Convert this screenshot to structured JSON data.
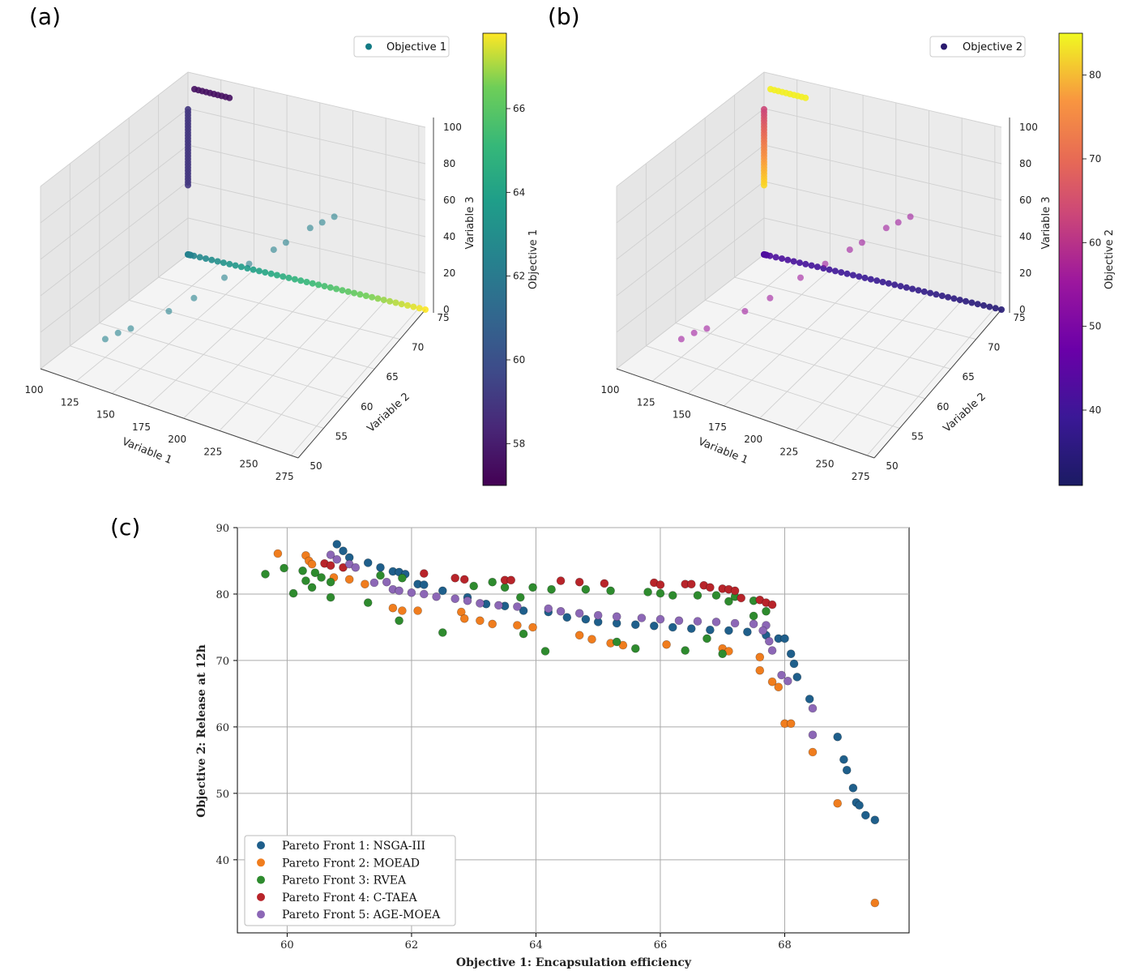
{
  "panels": {
    "a": {
      "letter": "(a)",
      "legend": "Objective 1",
      "legend_color": "#127a84",
      "colorbar_label": "Objective 1",
      "colorbar_ticks": [
        "58",
        "60",
        "62",
        "64",
        "66"
      ],
      "colorbar_range": [
        57,
        67.8
      ],
      "colormap": "viridis"
    },
    "b": {
      "letter": "(b)",
      "legend": "Objective 2",
      "legend_color": "#2a1a6e",
      "colorbar_label": "Objective 2",
      "colorbar_ticks": [
        "40",
        "50",
        "60",
        "70",
        "80"
      ],
      "colorbar_range": [
        31,
        85
      ],
      "colormap": "plasma"
    },
    "axes3d": {
      "xlabel": "Variable 1",
      "ylabel": "Variable 2",
      "zlabel": "Variable 3",
      "x_ticks": [
        "100",
        "125",
        "150",
        "175",
        "200",
        "225",
        "250",
        "275"
      ],
      "y_ticks": [
        "50",
        "55",
        "60",
        "65",
        "70",
        "75"
      ],
      "z_ticks": [
        "0",
        "20",
        "40",
        "60",
        "80",
        "100"
      ]
    },
    "c": {
      "letter": "(c)"
    }
  },
  "chart_data": [
    {
      "type": "scatter",
      "name": "panel-a-3d",
      "xlabel": "Variable 1",
      "ylabel": "Variable 2",
      "zlabel": "Variable 3",
      "colorbar": "Objective 1",
      "xlim": [
        100,
        280
      ],
      "ylim": [
        50,
        75
      ],
      "zlim": [
        0,
        100
      ]
    },
    {
      "type": "scatter",
      "name": "panel-b-3d",
      "xlabel": "Variable 1",
      "ylabel": "Variable 2",
      "zlabel": "Variable 3",
      "colorbar": "Objective 2",
      "xlim": [
        100,
        280
      ],
      "ylim": [
        50,
        75
      ],
      "zlim": [
        0,
        100
      ]
    },
    {
      "type": "scatter",
      "xlabel": "Objective 1: Encapsulation efficiency",
      "ylabel": "Objective 2: Release at 12h",
      "xlim": [
        59.2,
        70.0
      ],
      "ylim": [
        29,
        90
      ],
      "xticks": [
        60,
        62,
        64,
        66,
        68
      ],
      "yticks": [
        40,
        50,
        60,
        70,
        80,
        90
      ],
      "grid": true,
      "legend_position": "bottom-left",
      "series": [
        {
          "name": "Pareto Front 1: NSGA-III",
          "color": "#1f5f8b",
          "points": [
            [
              60.8,
              87.5
            ],
            [
              60.9,
              86.5
            ],
            [
              61.0,
              85.5
            ],
            [
              61.3,
              84.7
            ],
            [
              61.5,
              84
            ],
            [
              61.7,
              83.4
            ],
            [
              61.8,
              83.3
            ],
            [
              61.9,
              83
            ],
            [
              62.1,
              81.5
            ],
            [
              62.2,
              81.4
            ],
            [
              62.5,
              80.5
            ],
            [
              62.9,
              79.5
            ],
            [
              63.2,
              78.5
            ],
            [
              63.5,
              78.2
            ],
            [
              63.8,
              77.5
            ],
            [
              64.2,
              77.3
            ],
            [
              64.5,
              76.5
            ],
            [
              64.8,
              76.2
            ],
            [
              65.0,
              75.8
            ],
            [
              65.3,
              75.6
            ],
            [
              65.6,
              75.4
            ],
            [
              65.9,
              75.2
            ],
            [
              66.2,
              75
            ],
            [
              66.5,
              74.8
            ],
            [
              66.8,
              74.6
            ],
            [
              67.1,
              74.5
            ],
            [
              67.4,
              74.3
            ],
            [
              67.7,
              73.8
            ],
            [
              67.9,
              73.3
            ],
            [
              68.0,
              73.3
            ],
            [
              68.1,
              71
            ],
            [
              68.15,
              69.5
            ],
            [
              68.2,
              67.5
            ],
            [
              68.4,
              64.2
            ],
            [
              68.85,
              58.5
            ],
            [
              68.95,
              55.1
            ],
            [
              69.0,
              53.5
            ],
            [
              69.1,
              50.8
            ],
            [
              69.15,
              48.6
            ],
            [
              69.2,
              48.2
            ],
            [
              69.3,
              46.7
            ],
            [
              69.45,
              46
            ]
          ]
        },
        {
          "name": "Pareto Front 2: MOEAD",
          "color": "#f07d1e",
          "points": [
            [
              59.85,
              86.1
            ],
            [
              60.3,
              85.8
            ],
            [
              60.35,
              85
            ],
            [
              60.4,
              84.5
            ],
            [
              60.75,
              82.5
            ],
            [
              61.0,
              82.2
            ],
            [
              61.25,
              81.5
            ],
            [
              61.7,
              77.9
            ],
            [
              61.85,
              77.5
            ],
            [
              62.1,
              77.5
            ],
            [
              62.8,
              77.3
            ],
            [
              62.85,
              76.3
            ],
            [
              63.1,
              76
            ],
            [
              63.3,
              75.5
            ],
            [
              63.7,
              75.3
            ],
            [
              63.95,
              75
            ],
            [
              64.7,
              73.8
            ],
            [
              64.9,
              73.2
            ],
            [
              65.2,
              72.6
            ],
            [
              65.4,
              72.3
            ],
            [
              66.1,
              72.4
            ],
            [
              67.0,
              71.8
            ],
            [
              67.1,
              71.4
            ],
            [
              67.6,
              70.5
            ],
            [
              67.6,
              68.5
            ],
            [
              67.8,
              66.8
            ],
            [
              67.9,
              66
            ],
            [
              68.0,
              60.5
            ],
            [
              68.1,
              60.5
            ],
            [
              68.45,
              56.2
            ],
            [
              68.85,
              48.5
            ],
            [
              69.45,
              33.5
            ]
          ]
        },
        {
          "name": "Pareto Front 3: RVEA",
          "color": "#2e8b2e",
          "points": [
            [
              59.65,
              83
            ],
            [
              59.95,
              83.9
            ],
            [
              60.1,
              80.1
            ],
            [
              60.25,
              83.5
            ],
            [
              60.3,
              82
            ],
            [
              60.4,
              81
            ],
            [
              60.45,
              83.2
            ],
            [
              60.55,
              82.5
            ],
            [
              60.7,
              81.8
            ],
            [
              60.7,
              79.5
            ],
            [
              61.3,
              78.7
            ],
            [
              61.5,
              82.8
            ],
            [
              61.8,
              76
            ],
            [
              61.85,
              82.4
            ],
            [
              62.5,
              74.2
            ],
            [
              63.0,
              81.2
            ],
            [
              63.3,
              81.8
            ],
            [
              63.5,
              81
            ],
            [
              63.75,
              79.5
            ],
            [
              63.8,
              74
            ],
            [
              63.95,
              81
            ],
            [
              64.15,
              71.4
            ],
            [
              64.25,
              80.7
            ],
            [
              64.8,
              80.7
            ],
            [
              65.2,
              80.5
            ],
            [
              65.3,
              72.8
            ],
            [
              65.6,
              71.8
            ],
            [
              65.8,
              80.3
            ],
            [
              66.0,
              80.1
            ],
            [
              66.2,
              79.8
            ],
            [
              66.4,
              71.5
            ],
            [
              66.6,
              79.8
            ],
            [
              66.75,
              73.3
            ],
            [
              66.9,
              79.8
            ],
            [
              67.0,
              71
            ],
            [
              67.1,
              78.9
            ],
            [
              67.2,
              79.6
            ],
            [
              67.5,
              79
            ],
            [
              67.5,
              76.7
            ],
            [
              67.7,
              77.4
            ]
          ]
        },
        {
          "name": "Pareto Front 4: C-TAEA",
          "color": "#b8242a",
          "points": [
            [
              60.6,
              84.6
            ],
            [
              60.7,
              84.3
            ],
            [
              60.9,
              84
            ],
            [
              62.2,
              83.1
            ],
            [
              62.7,
              82.4
            ],
            [
              62.85,
              82.2
            ],
            [
              63.5,
              82.1
            ],
            [
              63.6,
              82.1
            ],
            [
              64.4,
              82
            ],
            [
              64.7,
              81.8
            ],
            [
              65.1,
              81.6
            ],
            [
              65.9,
              81.7
            ],
            [
              66.0,
              81.4
            ],
            [
              66.4,
              81.5
            ],
            [
              66.5,
              81.5
            ],
            [
              66.7,
              81.3
            ],
            [
              66.8,
              81
            ],
            [
              67.0,
              80.8
            ],
            [
              67.1,
              80.7
            ],
            [
              67.2,
              80.5
            ],
            [
              67.3,
              79.4
            ],
            [
              67.6,
              79.1
            ],
            [
              67.7,
              78.7
            ],
            [
              67.8,
              78.4
            ]
          ]
        },
        {
          "name": "Pareto Front 5: AGE-MOEA",
          "color": "#8c67b6",
          "points": [
            [
              60.7,
              85.9
            ],
            [
              60.8,
              85.2
            ],
            [
              61.0,
              84.5
            ],
            [
              61.1,
              84
            ],
            [
              61.4,
              81.7
            ],
            [
              61.6,
              81.8
            ],
            [
              61.7,
              80.7
            ],
            [
              61.8,
              80.5
            ],
            [
              62.0,
              80.2
            ],
            [
              62.2,
              80
            ],
            [
              62.4,
              79.6
            ],
            [
              62.7,
              79.3
            ],
            [
              62.9,
              79
            ],
            [
              63.1,
              78.6
            ],
            [
              63.4,
              78.3
            ],
            [
              63.7,
              78.1
            ],
            [
              64.2,
              77.8
            ],
            [
              64.4,
              77.4
            ],
            [
              64.7,
              77.1
            ],
            [
              65.0,
              76.8
            ],
            [
              65.3,
              76.6
            ],
            [
              65.7,
              76.4
            ],
            [
              66.0,
              76.2
            ],
            [
              66.3,
              76
            ],
            [
              66.6,
              75.9
            ],
            [
              66.9,
              75.8
            ],
            [
              67.2,
              75.6
            ],
            [
              67.5,
              75.5
            ],
            [
              67.7,
              75.3
            ],
            [
              67.65,
              74.5
            ],
            [
              67.75,
              72.9
            ],
            [
              67.8,
              71.5
            ],
            [
              67.95,
              67.8
            ],
            [
              68.05,
              66.9
            ],
            [
              68.45,
              62.8
            ],
            [
              68.45,
              58.8
            ]
          ]
        }
      ]
    }
  ]
}
